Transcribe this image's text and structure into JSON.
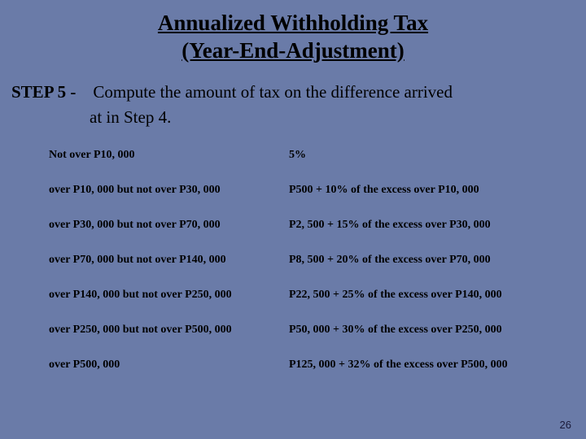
{
  "colors": {
    "background": "#6a7ba8",
    "text": "#000000",
    "page_num": "#1a1a3a"
  },
  "fonts": {
    "body_family": "Georgia, 'Times New Roman', serif",
    "title_size_pt": 27,
    "step_size_pt": 21,
    "table_size_pt": 14,
    "page_num_size_pt": 13
  },
  "title": {
    "line1": "Annualized Withholding Tax",
    "line2": "(Year-End-Adjustment)"
  },
  "step": {
    "label": "STEP 5 -",
    "text_line1": "Compute the amount of tax on the difference arrived",
    "text_line2": "at in Step 4."
  },
  "table": {
    "rows": [
      {
        "bracket": "Not over P10, 000",
        "tax": "5%"
      },
      {
        "bracket": "over P10, 000 but not over P30, 000",
        "tax": "P500 + 10% of the excess over P10, 000"
      },
      {
        "bracket": "over P30, 000 but not over P70, 000",
        "tax": "P2, 500 + 15% of the excess over P30, 000"
      },
      {
        "bracket": "over P70, 000 but not over P140, 000",
        "tax": "P8, 500 + 20% of the excess over P70, 000"
      },
      {
        "bracket": "over P140, 000 but not over P250, 000",
        "tax": "P22, 500 + 25% of the excess over P140, 000"
      },
      {
        "bracket": "over P250, 000 but not over P500, 000",
        "tax": "P50, 000 + 30% of the excess over P250, 000"
      },
      {
        "bracket": "over P500, 000",
        "tax": "P125, 000 + 32% of the excess over P500, 000"
      }
    ]
  },
  "page_number": "26"
}
